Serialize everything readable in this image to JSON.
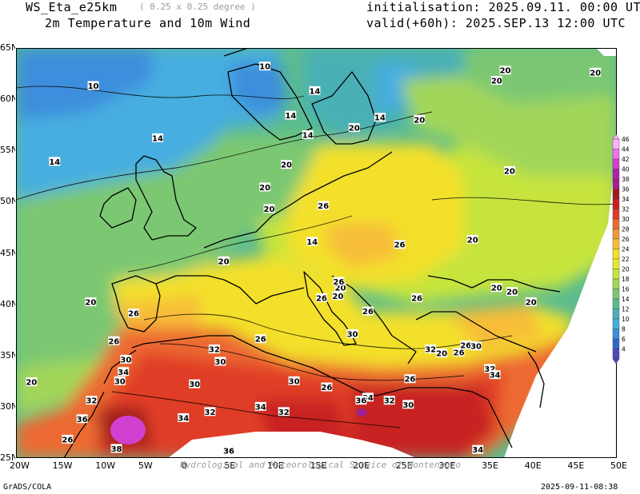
{
  "header": {
    "model": "WS_Eta_e25km",
    "resolution": "( 0.25 x 0.25 degree )",
    "variable": "2m Temperature and 10m Wind",
    "initialisation": "initialisation: 2025.09.11. 00:00 UTC",
    "valid": "valid(+60h): 2025.SEP.13 12:00 UTC"
  },
  "footer": {
    "left": "GrADS/COLA",
    "right": "2025-09-11-08:38",
    "watermark": "Hydrological and Meteorological Service of Montenegro"
  },
  "axes": {
    "lon_labels": [
      "20W",
      "15W",
      "10W",
      "5W",
      "0",
      "5E",
      "10E",
      "15E",
      "20E",
      "25E",
      "30E",
      "35E",
      "40E",
      "45E",
      "50E"
    ],
    "lat_labels": [
      "65N",
      "60N",
      "55N",
      "50N",
      "45N",
      "40N",
      "35N",
      "30N",
      "25N"
    ]
  },
  "colorbar": {
    "levels": [
      "46",
      "44",
      "42",
      "40",
      "38",
      "36",
      "34",
      "32",
      "30",
      "28",
      "26",
      "24",
      "22",
      "20",
      "18",
      "16",
      "14",
      "12",
      "10",
      "8",
      "6",
      "4"
    ],
    "colors": [
      "#ffb0ff",
      "#f070f0",
      "#d040d0",
      "#b020b0",
      "#a0208c",
      "#a01c1c",
      "#c82020",
      "#e03c28",
      "#ec6a30",
      "#f49638",
      "#f7bd38",
      "#f3e02c",
      "#e3ec30",
      "#c6e43e",
      "#a2d65a",
      "#7cc872",
      "#5cbc8e",
      "#48b0b6",
      "#46aee0",
      "#3c8edc",
      "#3068c8",
      "#5048b8"
    ]
  },
  "temperature_labels": [
    {
      "text": "10",
      "lon": -11,
      "lat": 61.3
    },
    {
      "text": "10",
      "lon": 9,
      "lat": 63.2
    },
    {
      "text": "14",
      "lon": -3.5,
      "lat": 56.2
    },
    {
      "text": "14",
      "lon": -15.5,
      "lat": 53.9
    },
    {
      "text": "14",
      "lon": 12,
      "lat": 58.4
    },
    {
      "text": "14",
      "lon": 14.8,
      "lat": 60.8
    },
    {
      "text": "14",
      "lon": 22.4,
      "lat": 58.2
    },
    {
      "text": "14",
      "lon": 14,
      "lat": 56.5
    },
    {
      "text": "14",
      "lon": 14.5,
      "lat": 46.1
    },
    {
      "text": "20",
      "lon": 37,
      "lat": 62.8
    },
    {
      "text": "20",
      "lon": 36,
      "lat": 61.8
    },
    {
      "text": "20",
      "lon": 47.5,
      "lat": 62.6
    },
    {
      "text": "20",
      "lon": 27,
      "lat": 58
    },
    {
      "text": "20",
      "lon": 19.4,
      "lat": 57.2
    },
    {
      "text": "20",
      "lon": 11.5,
      "lat": 53.6
    },
    {
      "text": "20",
      "lon": 9,
      "lat": 51.4
    },
    {
      "text": "20",
      "lon": 37.5,
      "lat": 53
    },
    {
      "text": "20",
      "lon": 9.5,
      "lat": 49.3
    },
    {
      "text": "20",
      "lon": 33.2,
      "lat": 46.3
    },
    {
      "text": "20",
      "lon": 4.2,
      "lat": 44.2
    },
    {
      "text": "20",
      "lon": 36,
      "lat": 41.6
    },
    {
      "text": "20",
      "lon": 37.8,
      "lat": 41.2
    },
    {
      "text": "20",
      "lon": 40,
      "lat": 40.2
    },
    {
      "text": "20",
      "lon": -11.3,
      "lat": 40.2
    },
    {
      "text": "20",
      "lon": -18.2,
      "lat": 32.4
    },
    {
      "text": "20",
      "lon": 17.8,
      "lat": 41.6
    },
    {
      "text": "20",
      "lon": 17.5,
      "lat": 40.8
    },
    {
      "text": "20",
      "lon": 29.6,
      "lat": 35.2
    },
    {
      "text": "26",
      "lon": 15.8,
      "lat": 49.6
    },
    {
      "text": "26",
      "lon": 24.7,
      "lat": 45.8
    },
    {
      "text": "26",
      "lon": 17.6,
      "lat": 42.2
    },
    {
      "text": "26",
      "lon": 15.6,
      "lat": 40.6
    },
    {
      "text": "26",
      "lon": 21,
      "lat": 39.3
    },
    {
      "text": "26",
      "lon": 26.7,
      "lat": 40.6
    },
    {
      "text": "26",
      "lon": -6.3,
      "lat": 39.1
    },
    {
      "text": "26",
      "lon": -8.6,
      "lat": 36.4
    },
    {
      "text": "26",
      "lon": 8.5,
      "lat": 36.6
    },
    {
      "text": "26",
      "lon": 16.2,
      "lat": 31.9
    },
    {
      "text": "26",
      "lon": 25.9,
      "lat": 32.7
    },
    {
      "text": "26",
      "lon": -14,
      "lat": 26.8
    },
    {
      "text": "26",
      "lon": 31.6,
      "lat": 35.3
    },
    {
      "text": "26",
      "lon": 32.4,
      "lat": 36
    },
    {
      "text": "30",
      "lon": -7.2,
      "lat": 34.6
    },
    {
      "text": "30",
      "lon": 3.8,
      "lat": 34.4
    },
    {
      "text": "30",
      "lon": -7.9,
      "lat": 32.5
    },
    {
      "text": "30",
      "lon": 0.8,
      "lat": 32.2
    },
    {
      "text": "30",
      "lon": 12.4,
      "lat": 32.5
    },
    {
      "text": "30",
      "lon": 25.7,
      "lat": 30.2
    },
    {
      "text": "30",
      "lon": 19.2,
      "lat": 37.1
    },
    {
      "text": "30",
      "lon": 33.6,
      "lat": 35.9
    },
    {
      "text": "32",
      "lon": 3.1,
      "lat": 35.6
    },
    {
      "text": "32",
      "lon": -11.2,
      "lat": 30.6
    },
    {
      "text": "32",
      "lon": 2.6,
      "lat": 29.5
    },
    {
      "text": "32",
      "lon": 11.2,
      "lat": 29.5
    },
    {
      "text": "32",
      "lon": 28.3,
      "lat": 35.6
    },
    {
      "text": "32",
      "lon": 35.2,
      "lat": 33.7
    },
    {
      "text": "32",
      "lon": 23.5,
      "lat": 30.6
    },
    {
      "text": "34",
      "lon": -7.5,
      "lat": 33.4
    },
    {
      "text": "34",
      "lon": 8.5,
      "lat": 30
    },
    {
      "text": "34",
      "lon": -0.5,
      "lat": 28.9
    },
    {
      "text": "34",
      "lon": 21,
      "lat": 30.9
    },
    {
      "text": "34",
      "lon": 35.8,
      "lat": 33.1
    },
    {
      "text": "34",
      "lon": 33.8,
      "lat": 25.8
    },
    {
      "text": "36",
      "lon": -12.3,
      "lat": 28.8
    },
    {
      "text": "36",
      "lon": 20.2,
      "lat": 30.6
    },
    {
      "text": "36",
      "lon": 4.8,
      "lat": 25.7
    },
    {
      "text": "38",
      "lon": -8.3,
      "lat": 25.9
    }
  ]
}
